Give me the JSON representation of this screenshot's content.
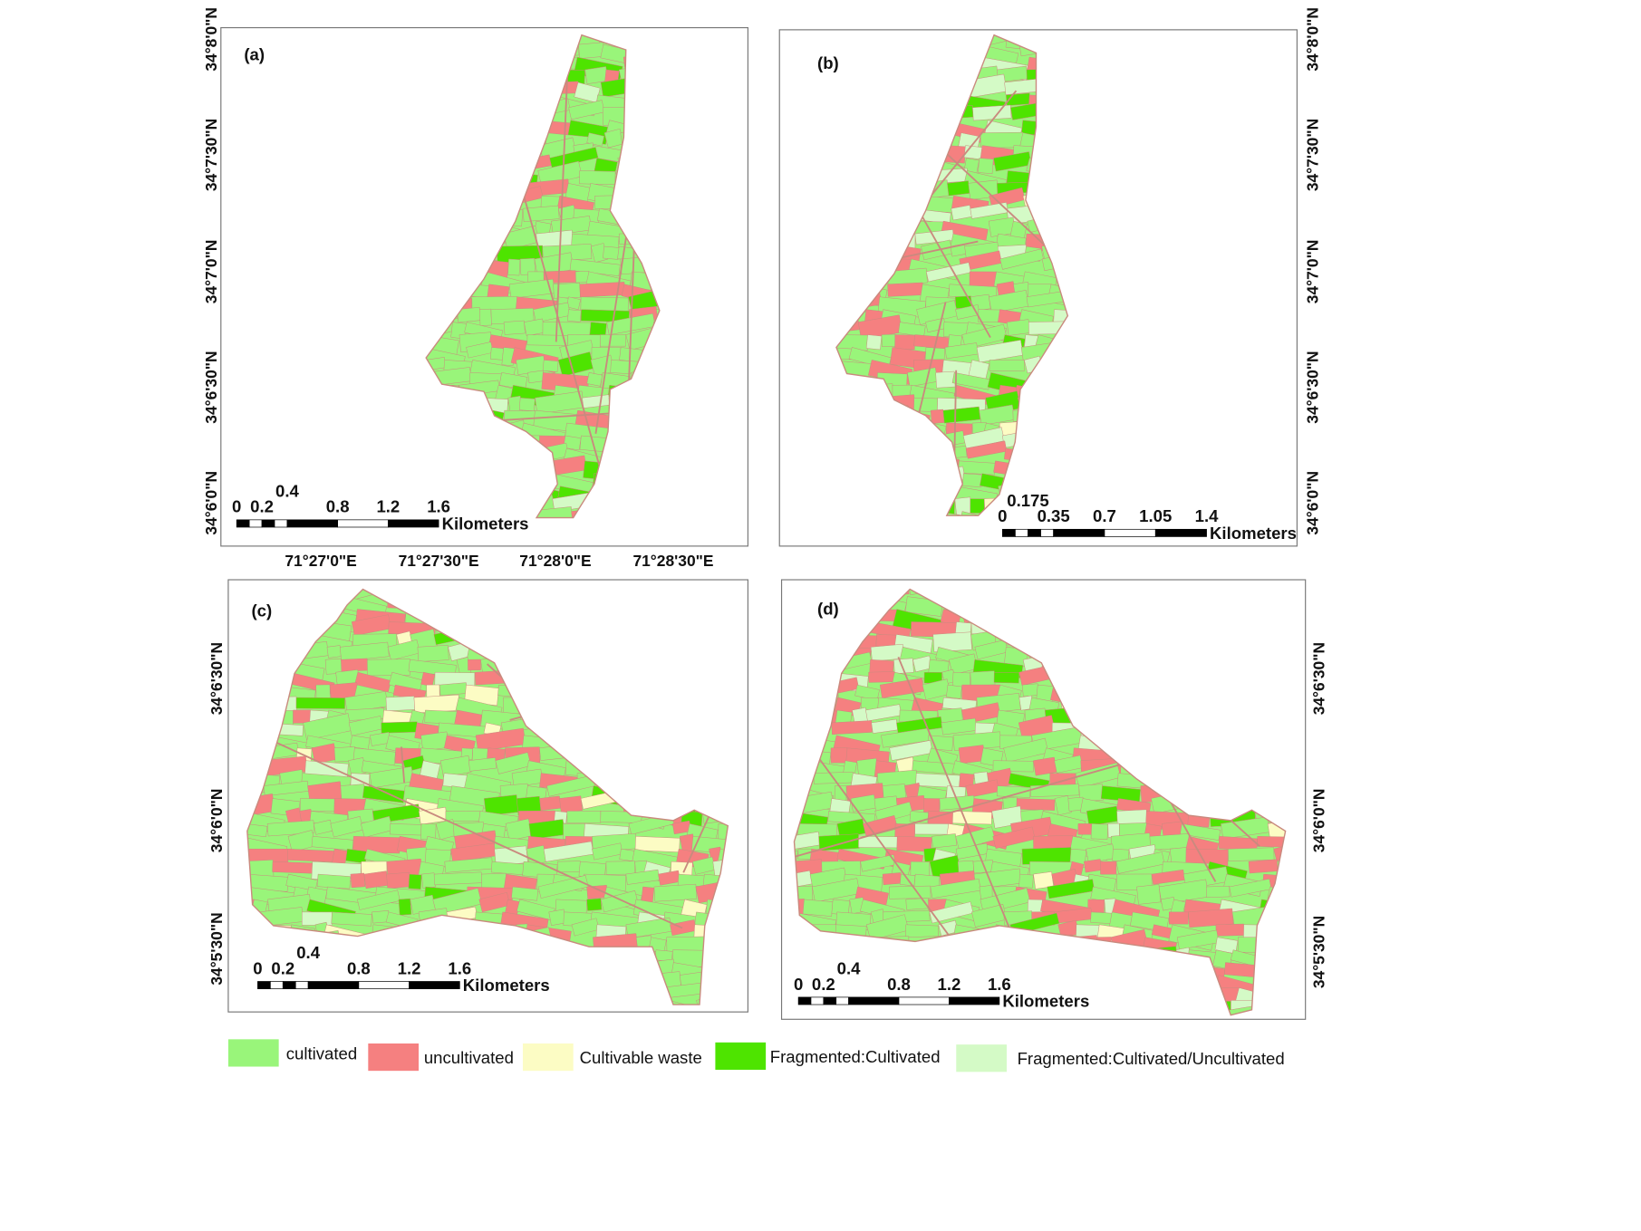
{
  "legend": [
    {
      "label": "cultivated",
      "color": "#99f57a"
    },
    {
      "label": "uncultivated",
      "color": "#f58080"
    },
    {
      "label": "Cultivable waste",
      "color": "#fcfcc4"
    },
    {
      "label": "Fragmented:Cultivated",
      "color": "#4ee400"
    },
    {
      "label": "Fragmented:Cultivated/Uncultivated",
      "color": "#d4fac6"
    }
  ],
  "boundary_color": "#c98a7e",
  "panels": {
    "a": {
      "label": "(a)",
      "lat_ticks": [
        "34°8'0\"N",
        "34°7'30\"N",
        "34°7'0\"N",
        "34°6'30\"N",
        "34°6'0\"N"
      ],
      "lon_ticks": [
        "71°27'0\"E",
        "71°27'30\"E",
        "71°28'0\"E",
        "71°28'30\"E"
      ],
      "scale": {
        "ticks": [
          "0",
          "0.2",
          "0.4",
          "0.8",
          "1.2",
          "1.6"
        ],
        "unit": "Kilometers"
      }
    },
    "b": {
      "label": "(b)",
      "lat_ticks": [
        "34°8'0\"N",
        "34°7'30\"N",
        "34°7'0\"N",
        "34°6'30\"N",
        "34°6'0\"N"
      ],
      "scale": {
        "ticks": [
          "0",
          "0.175",
          "0.35",
          "0.7",
          "1.05",
          "1.4"
        ],
        "unit": "Kilometers"
      }
    },
    "c": {
      "label": "(c)",
      "lat_ticks": [
        "34°6'30\"N",
        "34°6'0\"N",
        "34°5'30\"N"
      ],
      "scale": {
        "ticks": [
          "0",
          "0.2",
          "0.4",
          "0.8",
          "1.2",
          "1.6"
        ],
        "unit": "Kilometers"
      }
    },
    "d": {
      "label": "(d)",
      "lat_ticks": [
        "34°6'30\"N",
        "34°6'0\"N",
        "34°5'30\"N"
      ],
      "scale": {
        "ticks": [
          "0",
          "0.2",
          "0.4",
          "0.8",
          "1.2",
          "1.6"
        ],
        "unit": "Kilometers"
      }
    }
  }
}
